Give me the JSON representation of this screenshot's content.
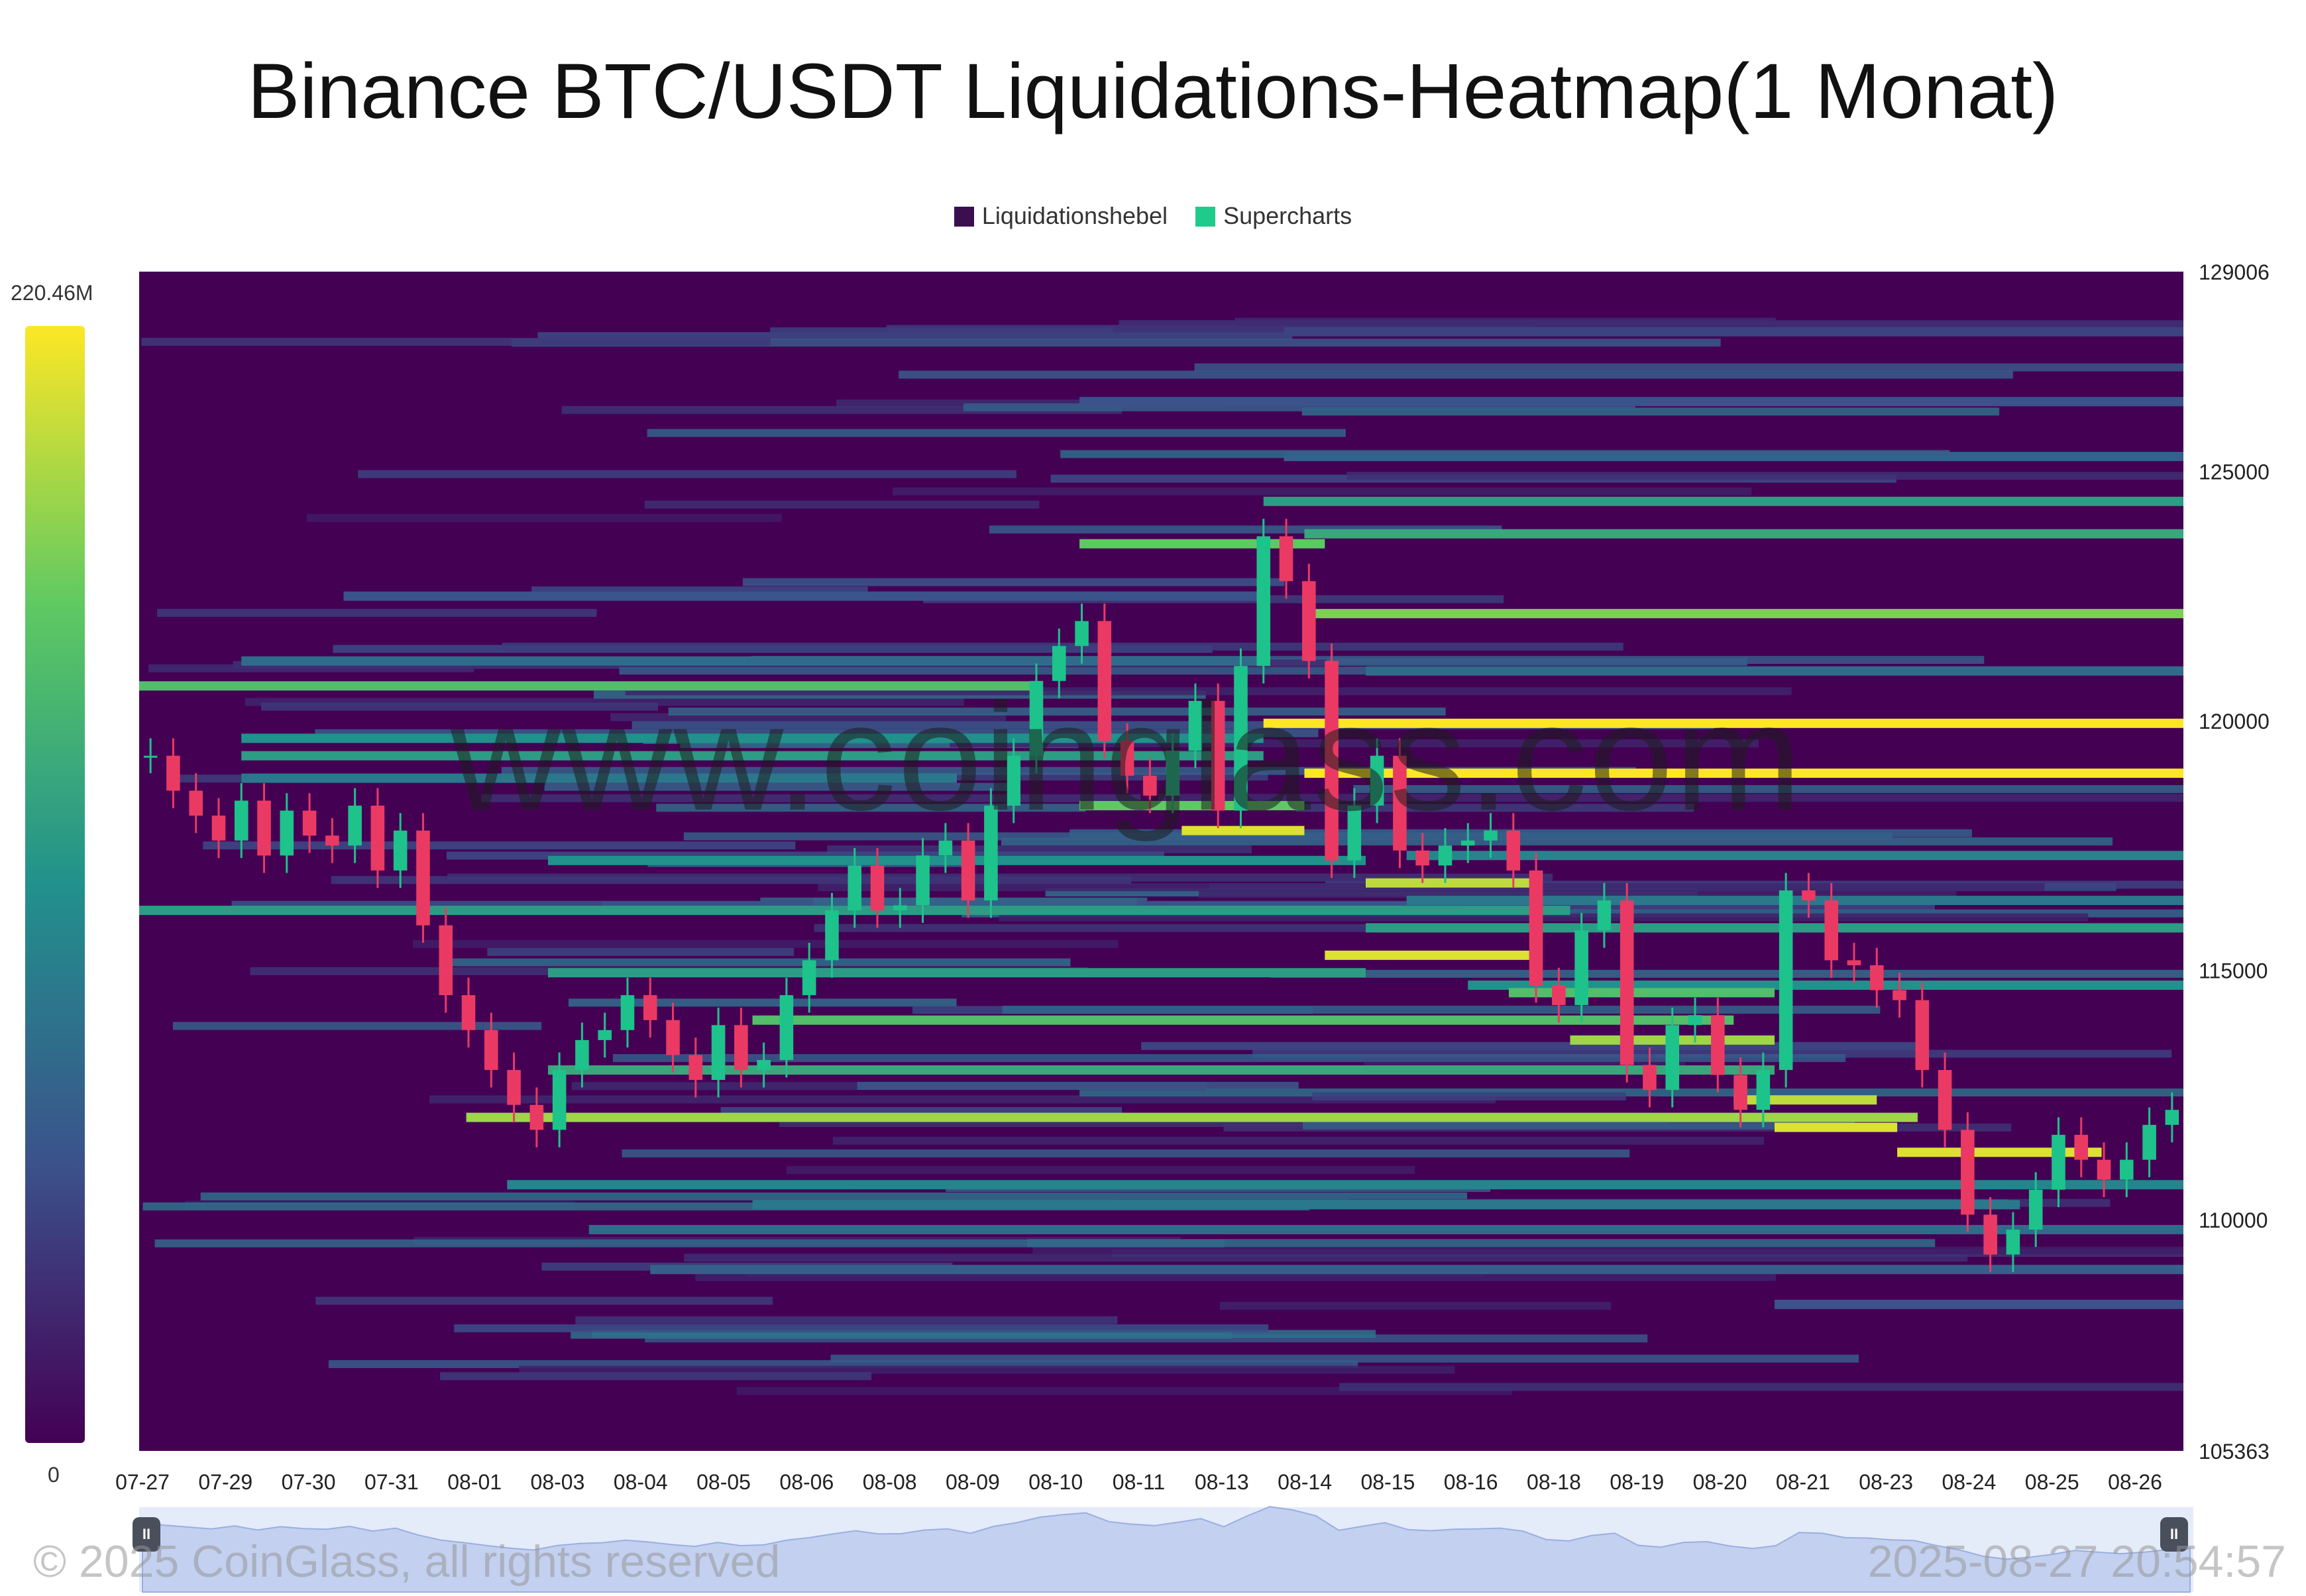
{
  "title": "Binance BTC/USDT Liquidations-Heatmap(1 Monat)",
  "legend": [
    {
      "label": "Liquidationshebel",
      "color": "#3b0f4f"
    },
    {
      "label": "Supercharts",
      "color": "#1fca8a"
    }
  ],
  "color_scale": {
    "max_label": "220.46M",
    "min_label": "0"
  },
  "watermark": "www.coinglass.com",
  "footer": {
    "copyright": "© 2025 CoinGlass, all rights reserved",
    "timestamp": "2025-08-27 20:54:57"
  },
  "colors": {
    "background": "#440154",
    "up_candle": "#1ec28b",
    "down_candle": "#ea3a63",
    "highlight": "#fde725"
  },
  "chart_data": {
    "type": "heatmap",
    "title": "Binance BTC/USDT Liquidations-Heatmap(1 Monat)",
    "xlabel": "",
    "ylabel": "",
    "ylim": [
      105363,
      129006
    ],
    "y_ticks": [
      {
        "value": 129006,
        "label": "129006"
      },
      {
        "value": 125000,
        "label": "125000"
      },
      {
        "value": 120000,
        "label": "120000"
      },
      {
        "value": 115000,
        "label": "115000"
      },
      {
        "value": 110000,
        "label": "110000"
      },
      {
        "value": 105363,
        "label": "105363"
      }
    ],
    "x_ticks": [
      "07-27",
      "07-29",
      "07-30",
      "07-31",
      "08-01",
      "08-03",
      "08-04",
      "08-05",
      "08-06",
      "08-08",
      "08-09",
      "08-10",
      "08-11",
      "08-13",
      "08-14",
      "08-15",
      "08-16",
      "08-18",
      "08-19",
      "08-20",
      "08-21",
      "08-23",
      "08-24",
      "08-25",
      "08-26"
    ],
    "price_series": [
      119300,
      118600,
      118100,
      117600,
      118400,
      117300,
      118200,
      117700,
      117500,
      118300,
      117000,
      117800,
      115900,
      114500,
      113800,
      113000,
      112300,
      111800,
      113000,
      113600,
      113800,
      114500,
      114000,
      113300,
      112800,
      113900,
      113000,
      113200,
      114500,
      115200,
      116200,
      117100,
      116200,
      116300,
      117300,
      117600,
      116400,
      118300,
      119300,
      120800,
      121500,
      122000,
      119600,
      118900,
      118500,
      119400,
      120400,
      118200,
      121100,
      123700,
      122800,
      121200,
      117200,
      118300,
      119300,
      117400,
      117100,
      117500,
      117600,
      117800,
      117000,
      114700,
      114300,
      115800,
      116400,
      113100,
      112600,
      113900,
      114100,
      112900,
      112200,
      113000,
      116600,
      116400,
      115200,
      115100,
      114600,
      114400,
      113000,
      111800,
      110100,
      109300,
      109800,
      110600,
      111700,
      111200,
      110800,
      111200,
      111900,
      112200
    ],
    "heat_bands": [
      {
        "price": 120700,
        "from": 0.0,
        "to": 0.44,
        "intensity": 0.7
      },
      {
        "price": 119950,
        "from": 0.55,
        "to": 1.0,
        "intensity": 1.0
      },
      {
        "price": 118950,
        "from": 0.57,
        "to": 1.0,
        "intensity": 1.0
      },
      {
        "price": 122150,
        "from": 0.57,
        "to": 1.0,
        "intensity": 0.8
      },
      {
        "price": 123550,
        "from": 0.46,
        "to": 0.58,
        "intensity": 0.75
      },
      {
        "price": 123750,
        "from": 0.57,
        "to": 1.0,
        "intensity": 0.6
      },
      {
        "price": 124400,
        "from": 0.55,
        "to": 1.0,
        "intensity": 0.55
      },
      {
        "price": 118300,
        "from": 0.46,
        "to": 0.57,
        "intensity": 0.75
      },
      {
        "price": 117800,
        "from": 0.51,
        "to": 0.57,
        "intensity": 0.95
      },
      {
        "price": 117200,
        "from": 0.2,
        "to": 0.6,
        "intensity": 0.5
      },
      {
        "price": 116750,
        "from": 0.6,
        "to": 0.68,
        "intensity": 0.9
      },
      {
        "price": 116200,
        "from": 0.0,
        "to": 0.7,
        "intensity": 0.55
      },
      {
        "price": 115850,
        "from": 0.6,
        "to": 1.0,
        "intensity": 0.55
      },
      {
        "price": 115300,
        "from": 0.58,
        "to": 0.68,
        "intensity": 0.95
      },
      {
        "price": 114950,
        "from": 0.2,
        "to": 0.6,
        "intensity": 0.55
      },
      {
        "price": 114700,
        "from": 0.65,
        "to": 1.0,
        "intensity": 0.5
      },
      {
        "price": 114550,
        "from": 0.67,
        "to": 0.8,
        "intensity": 0.7
      },
      {
        "price": 114000,
        "from": 0.3,
        "to": 0.78,
        "intensity": 0.7
      },
      {
        "price": 113600,
        "from": 0.7,
        "to": 0.8,
        "intensity": 0.85
      },
      {
        "price": 113000,
        "from": 0.2,
        "to": 0.8,
        "intensity": 0.6
      },
      {
        "price": 112400,
        "from": 0.78,
        "to": 0.85,
        "intensity": 0.9
      },
      {
        "price": 112050,
        "from": 0.16,
        "to": 0.87,
        "intensity": 0.85
      },
      {
        "price": 111850,
        "from": 0.8,
        "to": 0.86,
        "intensity": 0.95
      },
      {
        "price": 111350,
        "from": 0.86,
        "to": 0.96,
        "intensity": 0.95
      },
      {
        "price": 110700,
        "from": 0.18,
        "to": 1.0,
        "intensity": 0.45
      },
      {
        "price": 110300,
        "from": 0.3,
        "to": 0.92,
        "intensity": 0.4
      },
      {
        "price": 109800,
        "from": 0.22,
        "to": 1.0,
        "intensity": 0.35
      },
      {
        "price": 109000,
        "from": 0.25,
        "to": 1.0,
        "intensity": 0.3
      },
      {
        "price": 108300,
        "from": 0.8,
        "to": 1.0,
        "intensity": 0.25
      },
      {
        "price": 121200,
        "from": 0.05,
        "to": 0.55,
        "intensity": 0.35
      },
      {
        "price": 119300,
        "from": 0.05,
        "to": 0.55,
        "intensity": 0.55
      },
      {
        "price": 119650,
        "from": 0.05,
        "to": 0.55,
        "intensity": 0.5
      },
      {
        "price": 118850,
        "from": 0.05,
        "to": 0.4,
        "intensity": 0.4
      },
      {
        "price": 122500,
        "from": 0.1,
        "to": 0.55,
        "intensity": 0.25
      },
      {
        "price": 126400,
        "from": 0.46,
        "to": 1.0,
        "intensity": 0.25
      },
      {
        "price": 127800,
        "from": 0.56,
        "to": 1.0,
        "intensity": 0.2
      },
      {
        "price": 125300,
        "from": 0.56,
        "to": 1.0,
        "intensity": 0.3
      },
      {
        "price": 121000,
        "from": 0.6,
        "to": 1.0,
        "intensity": 0.35
      },
      {
        "price": 117300,
        "from": 0.62,
        "to": 1.0,
        "intensity": 0.45
      },
      {
        "price": 116400,
        "from": 0.62,
        "to": 1.0,
        "intensity": 0.4
      }
    ]
  }
}
